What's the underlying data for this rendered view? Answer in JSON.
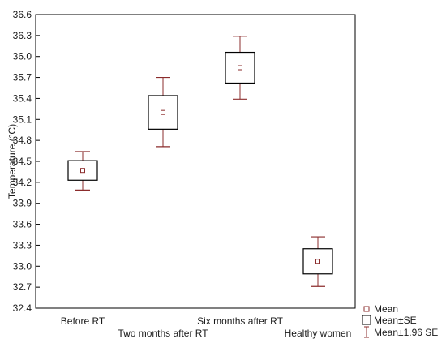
{
  "chart_data": {
    "type": "box",
    "ylabel": "Temperature (°C)",
    "ylim": [
      32.4,
      36.6
    ],
    "yticks": [
      32.4,
      32.7,
      33.0,
      33.3,
      33.6,
      33.9,
      34.2,
      34.5,
      34.8,
      35.1,
      35.4,
      35.7,
      36.0,
      36.3,
      36.6
    ],
    "ytick_labels": [
      "32.4",
      "32.7",
      "33.0",
      "33.3",
      "33.6",
      "33.9",
      "34.2",
      "34.5",
      "34.8",
      "35.1",
      "35.4",
      "35.7",
      "36.0",
      "36.3",
      "36.6"
    ],
    "categories": [
      "Before RT",
      "Two months after RT",
      "Six months after RT",
      "Healthy women"
    ],
    "mean": [
      34.37,
      35.2,
      35.84,
      33.07
    ],
    "se_low": [
      34.23,
      34.96,
      35.62,
      32.89
    ],
    "se_high": [
      34.51,
      35.44,
      36.06,
      33.25
    ],
    "ci_low": [
      34.09,
      34.71,
      35.39,
      32.71
    ],
    "ci_high": [
      34.64,
      35.7,
      36.29,
      33.42
    ],
    "legend": {
      "position": "bottom-right",
      "entries": [
        "Mean",
        "Mean±SE",
        "Mean±1.96 SE"
      ]
    },
    "colors": {
      "marks": "#8b2c2c",
      "axis": "#000000",
      "legend": "#555555"
    },
    "grid": false
  }
}
